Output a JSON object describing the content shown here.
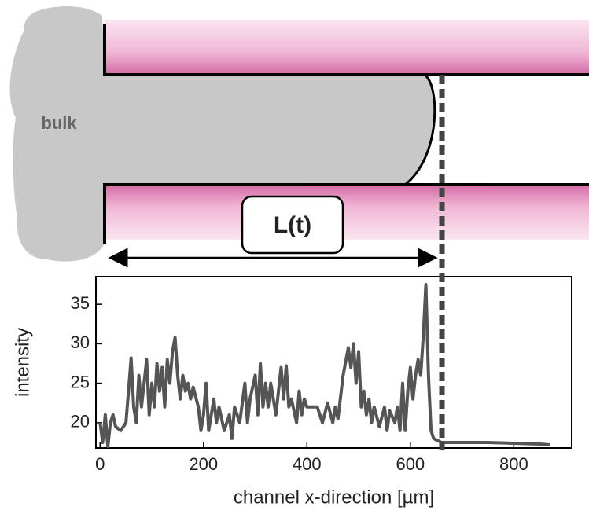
{
  "diagram": {
    "bulk_label": "bulk",
    "length_label": "L(t)"
  },
  "chart_data": {
    "type": "line",
    "xlabel": "channel x-direction [µm]",
    "ylabel": "intensity",
    "xlim": [
      -8,
      912
    ],
    "ylim": [
      16.8,
      38.5
    ],
    "xticks": [
      0,
      200,
      400,
      600,
      800
    ],
    "yticks": [
      20,
      25,
      30,
      35
    ],
    "series": [
      {
        "color": "#555555",
        "x": [
          0,
          5,
          10,
          15,
          20,
          25,
          30,
          40,
          50,
          55,
          60,
          65,
          70,
          75,
          80,
          90,
          95,
          100,
          105,
          110,
          115,
          120,
          125,
          130,
          135,
          140,
          145,
          150,
          155,
          160,
          165,
          170,
          175,
          180,
          190,
          195,
          200,
          205,
          210,
          220,
          225,
          230,
          240,
          250,
          255,
          260,
          270,
          280,
          285,
          290,
          300,
          305,
          310,
          315,
          320,
          325,
          330,
          340,
          350,
          355,
          360,
          365,
          370,
          380,
          385,
          390,
          395,
          400,
          420,
          430,
          440,
          450,
          455,
          460,
          470,
          480,
          485,
          490,
          495,
          500,
          505,
          510,
          515,
          520,
          525,
          530,
          540,
          550,
          555,
          560,
          570,
          575,
          580,
          585,
          590,
          595,
          600,
          605,
          610,
          615,
          620,
          625,
          630,
          635,
          640,
          645,
          660,
          700,
          750,
          800,
          850,
          870
        ],
        "values": [
          20,
          17.5,
          21,
          17,
          20,
          21,
          19.5,
          19,
          20,
          24,
          28.2,
          22,
          20,
          26,
          22,
          28,
          21,
          25,
          22,
          27.5,
          24,
          27,
          22,
          28,
          25,
          29,
          30.8,
          26,
          23,
          26,
          24,
          25,
          23,
          24.5,
          22,
          19,
          21,
          25,
          19,
          23,
          20,
          22,
          19,
          21,
          18,
          22,
          20,
          25,
          20,
          23,
          26,
          21,
          27.5,
          22,
          25,
          22,
          25,
          21,
          27,
          23,
          27.2,
          22,
          23,
          20,
          24,
          21,
          23,
          22,
          22,
          20,
          22.5,
          20,
          22,
          20.5,
          26,
          29.5,
          27,
          30,
          25,
          29,
          22,
          24,
          21,
          23,
          20,
          22,
          19.5,
          22,
          19,
          21.5,
          20,
          22,
          19,
          25,
          19,
          24,
          27,
          23,
          26,
          28,
          26,
          31,
          37.5,
          26,
          19,
          18,
          17.5,
          17.5,
          17.5,
          17.4,
          17.3,
          17.2
        ]
      }
    ]
  }
}
